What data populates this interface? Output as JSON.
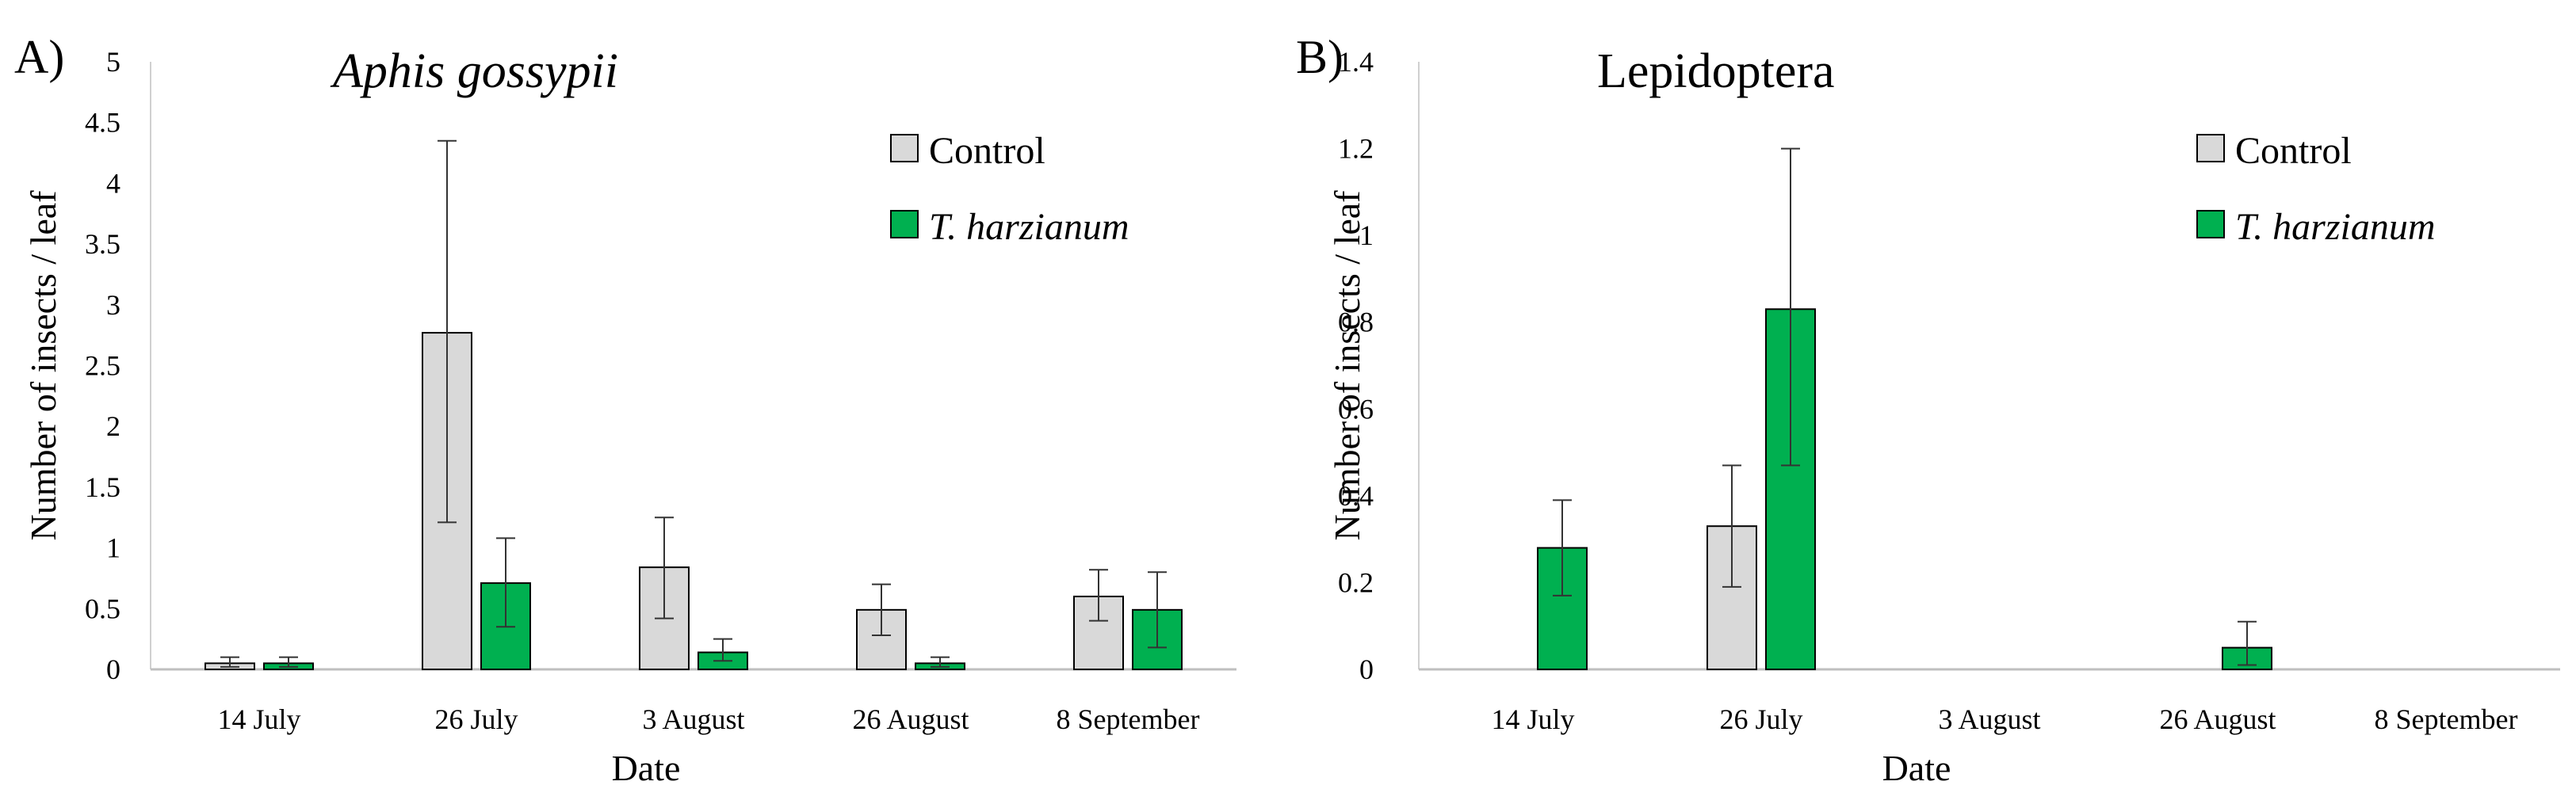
{
  "chart_data": [
    {
      "type": "bar",
      "panel_label": "A)",
      "title": "Aphis gossypii",
      "title_italic": true,
      "xlabel": "Date",
      "ylabel": "Number of insects / leaf",
      "ylim": [
        0,
        5
      ],
      "yticks": [
        "0",
        "0.5",
        "1",
        "1.5",
        "2",
        "2.5",
        "3",
        "3.5",
        "4",
        "4.5",
        "5"
      ],
      "grid": false,
      "legend_position": "top-right",
      "categories": [
        "14 July",
        "26 July",
        "3 August",
        "26 August",
        "8 September"
      ],
      "series": [
        {
          "name": "Control",
          "name_parts": [
            {
              "text": "Control",
              "italic": false
            }
          ],
          "color": "#d9d9d9",
          "values": [
            0.05,
            2.77,
            0.84,
            0.49,
            0.6
          ],
          "err_low": [
            0.02,
            1.21,
            0.42,
            0.28,
            0.4
          ],
          "err_high": [
            0.1,
            4.35,
            1.25,
            0.7,
            0.82
          ]
        },
        {
          "name": "T. harzianum",
          "name_parts": [
            {
              "text": "T. harzianum",
              "italic": true
            }
          ],
          "color": "#00b050",
          "values": [
            0.05,
            0.71,
            0.14,
            0.05,
            0.49
          ],
          "err_low": [
            0.02,
            0.35,
            0.07,
            0.02,
            0.18
          ],
          "err_high": [
            0.1,
            1.08,
            0.25,
            0.1,
            0.8
          ]
        }
      ]
    },
    {
      "type": "bar",
      "panel_label": "B)",
      "title": "Lepidoptera",
      "title_italic": false,
      "xlabel": "Date",
      "ylabel": "Number of insects / leaf",
      "ylim": [
        0,
        1.4
      ],
      "yticks": [
        "0",
        "0.2",
        "0.4",
        "0.6",
        "0.8",
        "1",
        "1.2",
        "1.4"
      ],
      "grid": false,
      "legend_position": "top-right",
      "categories": [
        "14 July",
        "26 July",
        "3 August",
        "26 August",
        "8 September"
      ],
      "series": [
        {
          "name": "Control",
          "name_parts": [
            {
              "text": "Control",
              "italic": false
            }
          ],
          "color": "#d9d9d9",
          "values": [
            0,
            0.33,
            0,
            0,
            0
          ],
          "err_low": [
            null,
            0.19,
            null,
            null,
            null
          ],
          "err_high": [
            null,
            0.47,
            null,
            null,
            null
          ]
        },
        {
          "name": "T. harzianum",
          "name_parts": [
            {
              "text": "T. harzianum",
              "italic": true
            }
          ],
          "color": "#00b050",
          "values": [
            0.28,
            0.83,
            0,
            0.05,
            0
          ],
          "err_low": [
            0.17,
            0.47,
            null,
            0.01,
            null
          ],
          "err_high": [
            0.39,
            1.2,
            null,
            0.11,
            null
          ]
        }
      ]
    }
  ]
}
